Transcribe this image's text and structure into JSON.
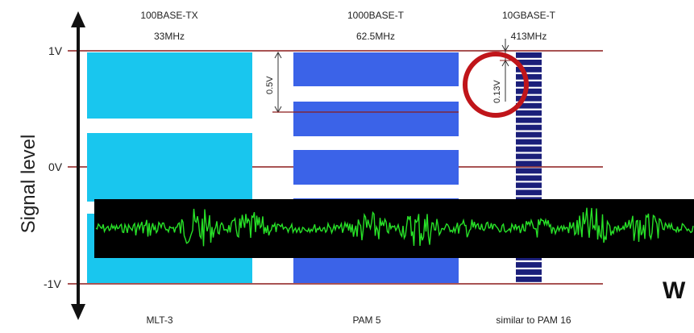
{
  "y_axis": {
    "title": "Signal level",
    "ticks": [
      "1V",
      "0V",
      "-1V"
    ]
  },
  "columns": [
    {
      "name": "100BASE-TX",
      "freq": "33MHz",
      "encoding": "MLT-3"
    },
    {
      "name": "1000BASE-T",
      "freq": "62.5MHz",
      "encoding": "PAM 5"
    },
    {
      "name": "10GBASE-T",
      "freq": "413MHz",
      "encoding": "similar to PAM 16"
    }
  ],
  "annotations": {
    "pam5_step": "0.5V",
    "pam16_step": "0.13V",
    "overlay_letter": "W"
  },
  "colors": {
    "mlt3": "#19c6ee",
    "pam5": "#3b63e8",
    "pam16": "#1b1f7a",
    "guide_lines": "#8b1a1a",
    "circle": "#c0151a",
    "noise_bg": "#000000",
    "noise_line": "#27e127"
  }
}
